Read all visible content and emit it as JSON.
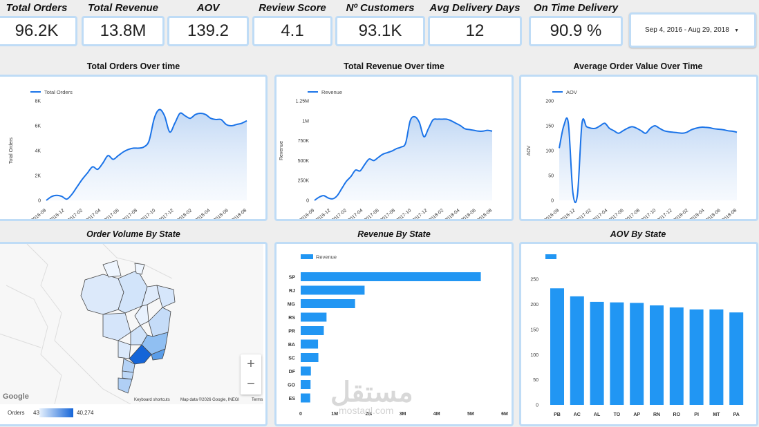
{
  "kpis": [
    {
      "title": "Total Orders",
      "value": "96.2K"
    },
    {
      "title": "Total Revenue",
      "value": "13.8M"
    },
    {
      "title": "AOV",
      "value": "139.2"
    },
    {
      "title": "Review Score",
      "value": "4.1"
    },
    {
      "title": "Nº Customers",
      "value": "93.1K"
    },
    {
      "title": "Avg Delivery Days",
      "value": "12"
    },
    {
      "title": "On Time Delivery",
      "value": "90.9 %"
    }
  ],
  "date_range": {
    "label": "Sep 4, 2016 - Aug 29, 2018"
  },
  "sections": {
    "orders_time": "Total Orders Over time",
    "revenue_time": "Total Revenue Over time",
    "aov_time": "Average Order Value Over Time",
    "orders_state": "Order Volume By State",
    "revenue_state": "Revenue By State",
    "aov_state": "AOV By State"
  },
  "map": {
    "footer_shortcuts": "Keyboard shortcuts",
    "footer_data": "Map data ©2026 Google, INEGI",
    "footer_terms": "Terms",
    "logo": "Google",
    "legend_label": "Orders",
    "legend_min": "43",
    "legend_max": "40,274",
    "zoom_in": "+",
    "zoom_out": "−"
  },
  "watermark": {
    "text": "مستقل",
    "url": "mostaql.com"
  },
  "chart_data": [
    {
      "type": "area",
      "title": "Total Orders Over time",
      "ylabel": "Total Orders",
      "xlabel": "",
      "series": [
        {
          "name": "Total Orders",
          "color": "#1a73e8",
          "values": [
            0,
            300,
            400,
            320,
            100,
            500,
            1100,
            1700,
            2200,
            2700,
            2500,
            3000,
            3600,
            3300,
            3600,
            3900,
            4100,
            4200,
            4200,
            4300,
            4800,
            6600,
            7300,
            6800,
            5500,
            6200,
            7000,
            6800,
            6600,
            6900,
            7000,
            6900,
            6600,
            6500,
            6500,
            6100,
            6000,
            6100,
            6200,
            6400
          ]
        }
      ],
      "x_ticks": [
        "2016-09",
        "2016-12",
        "2017-02",
        "2017-04",
        "2017-06",
        "2017-08",
        "2017-10",
        "2017-12",
        "2018-02",
        "2018-04",
        "2018-06",
        "2018-08"
      ],
      "y_ticks": [
        "0",
        "2K",
        "4K",
        "6K",
        "8K"
      ],
      "ylim": [
        0,
        8000
      ]
    },
    {
      "type": "area",
      "title": "Total Revenue Over time",
      "ylabel": "Revenue",
      "xlabel": "",
      "series": [
        {
          "name": "Revenue",
          "color": "#1a73e8",
          "values": [
            0,
            40000,
            60000,
            30000,
            20000,
            60000,
            150000,
            240000,
            300000,
            380000,
            370000,
            450000,
            520000,
            500000,
            540000,
            580000,
            600000,
            620000,
            650000,
            670000,
            720000,
            1000000,
            1050000,
            980000,
            800000,
            900000,
            1010000,
            1020000,
            1020000,
            1020000,
            1000000,
            970000,
            940000,
            900000,
            890000,
            880000,
            870000,
            870000,
            880000,
            870000
          ]
        }
      ],
      "x_ticks": [
        "2016-09",
        "2016-12",
        "2017-02",
        "2017-04",
        "2017-06",
        "2017-08",
        "2017-10",
        "2017-12",
        "2018-02",
        "2018-04",
        "2018-06",
        "2018-08"
      ],
      "y_ticks": [
        "0",
        "250K",
        "500K",
        "750K",
        "1M",
        "1.25M"
      ],
      "ylim": [
        0,
        1250000
      ]
    },
    {
      "type": "area",
      "title": "Average Order Value Over Time",
      "ylabel": "AOV",
      "xlabel": "",
      "series": [
        {
          "name": "AOV",
          "color": "#1a73e8",
          "values": [
            105,
            150,
            155,
            15,
            12,
            155,
            148,
            145,
            145,
            150,
            155,
            145,
            140,
            135,
            140,
            145,
            148,
            145,
            140,
            135,
            145,
            150,
            145,
            140,
            138,
            137,
            136,
            135,
            137,
            142,
            145,
            147,
            147,
            146,
            144,
            143,
            142,
            140,
            139,
            137
          ]
        }
      ],
      "x_ticks": [
        "2016-09",
        "2016-12",
        "2017-02",
        "2017-04",
        "2017-06",
        "2017-08",
        "2017-10",
        "2017-12",
        "2018-02",
        "2018-04",
        "2018-06",
        "2018-08"
      ],
      "y_ticks": [
        "0",
        "50",
        "100",
        "150",
        "200"
      ],
      "ylim": [
        0,
        200
      ]
    },
    {
      "type": "bar",
      "orientation": "horizontal",
      "title": "Revenue By State",
      "series": [
        {
          "name": "Revenue",
          "color": "#2196f3",
          "values": [
            5300000,
            1880000,
            1600000,
            760000,
            680000,
            510000,
            520000,
            300000,
            290000,
            280000
          ]
        }
      ],
      "categories": [
        "SP",
        "RJ",
        "MG",
        "RS",
        "PR",
        "BA",
        "SC",
        "DF",
        "GO",
        "ES"
      ],
      "x_ticks": [
        "0",
        "1M",
        "2M",
        "3M",
        "4M",
        "5M",
        "6M"
      ],
      "xlim": [
        0,
        6000000
      ]
    },
    {
      "type": "bar",
      "title": "AOV By State",
      "series": [
        {
          "name": "",
          "color": "#2196f3",
          "values": [
            232,
            216,
            205,
            204,
            203,
            198,
            194,
            190,
            190,
            184
          ]
        }
      ],
      "categories": [
        "PB",
        "AC",
        "AL",
        "TO",
        "AP",
        "RN",
        "RO",
        "PI",
        "MT",
        "PA"
      ],
      "y_ticks": [
        "0",
        "50",
        "100",
        "150",
        "200",
        "250"
      ],
      "ylim": [
        0,
        275
      ]
    }
  ]
}
